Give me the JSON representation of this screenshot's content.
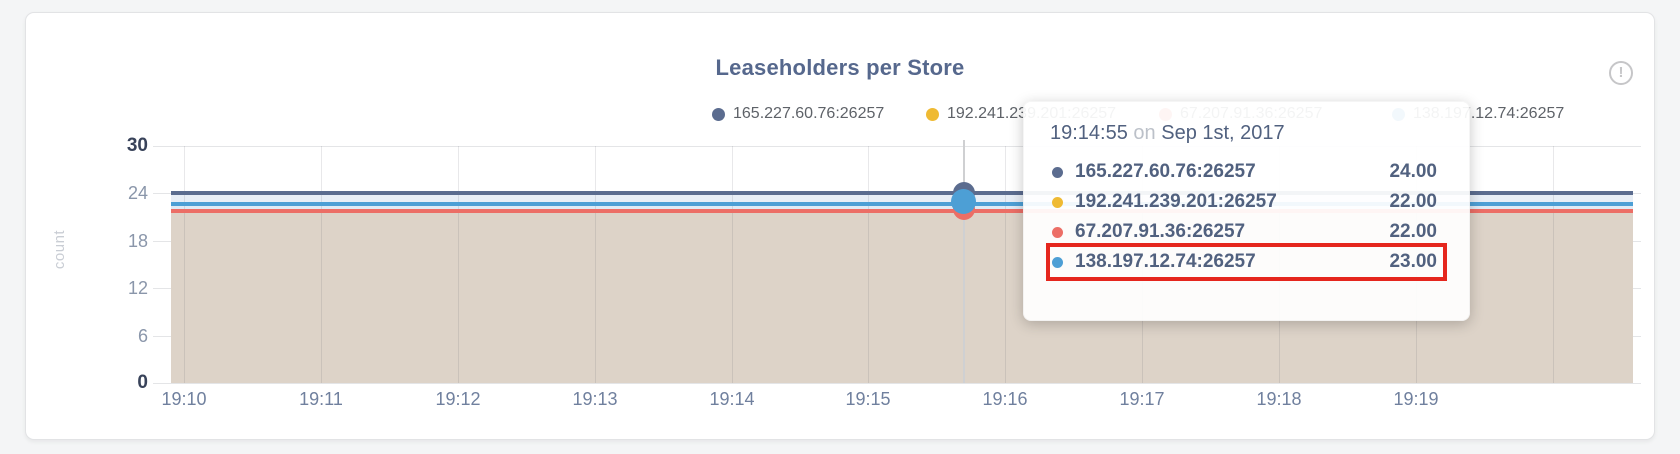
{
  "panel": {
    "title": "Leaseholders per Store",
    "info_glyph": "!"
  },
  "legend": {
    "items": [
      {
        "label": "165.227.60.76:26257",
        "color": "#5b6c8f"
      },
      {
        "label": "192.241.239.201:26257",
        "color": "#efba33"
      },
      {
        "label": "67.207.91.36:26257",
        "color": "#ec6e66"
      },
      {
        "label": "138.197.12.74:26257",
        "color": "#4d9fd5"
      }
    ]
  },
  "tooltip": {
    "time": "19:14:55",
    "on_word": "on",
    "date": "Sep 1st, 2017",
    "rows": [
      {
        "label": "165.227.60.76:26257",
        "value": "24.00",
        "color": "#5b6c8f",
        "highlighted": false
      },
      {
        "label": "192.241.239.201:26257",
        "value": "22.00",
        "color": "#efba33",
        "highlighted": false
      },
      {
        "label": "67.207.91.36:26257",
        "value": "22.00",
        "color": "#ec6e66",
        "highlighted": false
      },
      {
        "label": "138.197.12.74:26257",
        "value": "23.00",
        "color": "#4d9fd5",
        "highlighted": true
      }
    ],
    "highlight_color": "#e5261d"
  },
  "chart_data": {
    "type": "line",
    "title": "Leaseholders per Store",
    "xlabel": "",
    "ylabel": "count",
    "ylim": [
      0,
      30
    ],
    "y_ticks": [
      30,
      24,
      18,
      12,
      6,
      0
    ],
    "y_tick_labels": [
      "30",
      "24",
      "18",
      "12",
      "6",
      "0"
    ],
    "x_ticks": [
      "19:10",
      "19:11",
      "19:12",
      "19:13",
      "19:14",
      "19:15",
      "19:16",
      "19:17",
      "19:18",
      "19:19"
    ],
    "grid": true,
    "legend_position": "top",
    "area_fill": true,
    "series": [
      {
        "name": "165.227.60.76:26257",
        "color": "#5b6c8f",
        "value": 24,
        "note": "constant ~24 across 19:10-19:20"
      },
      {
        "name": "192.241.239.201:26257",
        "color": "#efba33",
        "value": 22,
        "note": "constant ~22 across 19:10-19:20"
      },
      {
        "name": "67.207.91.36:26257",
        "color": "#ec6e66",
        "value": 22,
        "note": "constant ~22 across 19:10-19:20"
      },
      {
        "name": "138.197.12.74:26257",
        "color": "#4d9fd5",
        "value": 23,
        "note": "constant ~23 across 19:10-19:20"
      }
    ],
    "hover_point": {
      "time": "19:14:55",
      "date": "Sep 1st, 2017",
      "values": [
        24,
        22,
        22,
        23
      ]
    },
    "colors": {
      "band_between_24_23": "#e8eef6",
      "band_between_23_22": "#dfeaf5",
      "area_below_22": "#ddd3c8",
      "hover_guideline": "#cfd0d2"
    }
  }
}
